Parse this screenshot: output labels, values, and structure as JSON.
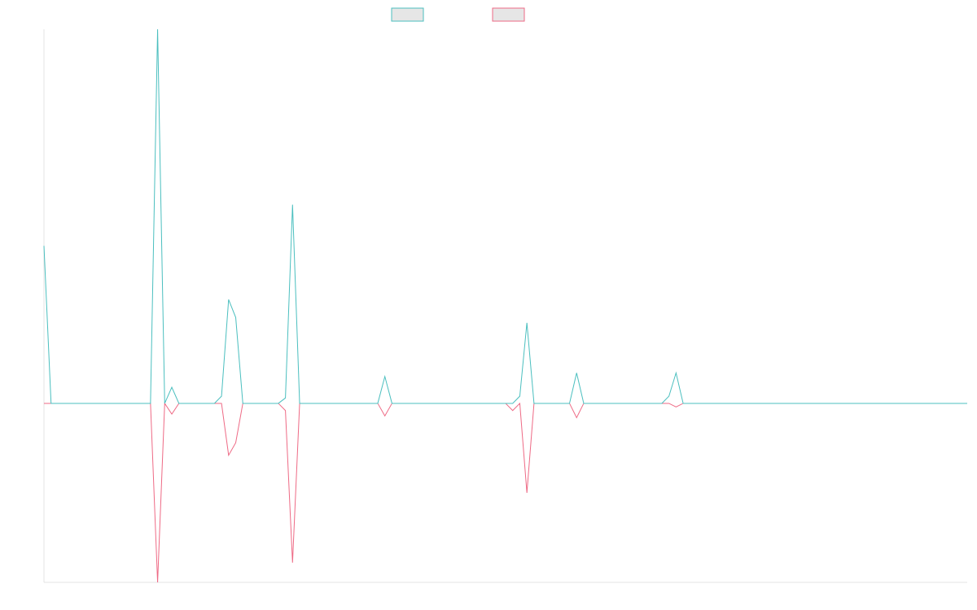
{
  "chart_data": {
    "type": "line",
    "title": "",
    "xlabel": "",
    "ylabel": "",
    "grid": false,
    "legend_position": "top-center",
    "x_count": 131,
    "ylim": [
      -1.0,
      2.09
    ],
    "colors": {
      "series_a": "#4bbfbf",
      "series_b": "#ee6a85",
      "legend_fill": "#e6e6e6",
      "axis": "#e3e3e3"
    },
    "series": [
      {
        "values": [
          0.88,
          0,
          0,
          0,
          0,
          0,
          0,
          0,
          0,
          0,
          0,
          0,
          0,
          0,
          0,
          0,
          2.09,
          0,
          0.09,
          0,
          0,
          0,
          0,
          0,
          0,
          0.04,
          0.58,
          0.48,
          0,
          0,
          0,
          0,
          0,
          0,
          0.03,
          1.11,
          0,
          0,
          0,
          0,
          0,
          0,
          0,
          0,
          0,
          0,
          0,
          0,
          0.15,
          0,
          0,
          0,
          0,
          0,
          0,
          0,
          0,
          0,
          0,
          0,
          0,
          0,
          0,
          0,
          0,
          0,
          0,
          0.04,
          0.45,
          0,
          0,
          0,
          0,
          0,
          0,
          0.17,
          0,
          0,
          0,
          0,
          0,
          0,
          0,
          0,
          0,
          0,
          0,
          0,
          0.04,
          0.17,
          0,
          0,
          0,
          0,
          0,
          0,
          0,
          0,
          0,
          0,
          0,
          0,
          0,
          0,
          0,
          0,
          0,
          0,
          0,
          0,
          0,
          0,
          0,
          0,
          0,
          0,
          0,
          0,
          0,
          0,
          0,
          0,
          0,
          0,
          0,
          0,
          0,
          0,
          0,
          0,
          0
        ]
      },
      {
        "values": [
          0,
          0,
          0,
          0,
          0,
          0,
          0,
          0,
          0,
          0,
          0,
          0,
          0,
          0,
          0,
          0,
          -1.0,
          0,
          -0.06,
          0,
          0,
          0,
          0,
          0,
          0,
          0,
          -0.29,
          -0.22,
          0,
          0,
          0,
          0,
          0,
          0,
          -0.04,
          -0.89,
          0,
          0,
          0,
          0,
          0,
          0,
          0,
          0,
          0,
          0,
          0,
          0,
          -0.07,
          0,
          0,
          0,
          0,
          0,
          0,
          0,
          0,
          0,
          0,
          0,
          0,
          0,
          0,
          0,
          0,
          0,
          -0.04,
          0,
          -0.5,
          0,
          0,
          0,
          0,
          0,
          0,
          -0.08,
          0,
          0,
          0,
          0,
          0,
          0,
          0,
          0,
          0,
          0,
          0,
          0,
          0,
          -0.02,
          0,
          0,
          0,
          0,
          0,
          0,
          0,
          0,
          0,
          0,
          0,
          0,
          0,
          0,
          0,
          0,
          0,
          0,
          0,
          0,
          0,
          0,
          0,
          0,
          0,
          0,
          0,
          0,
          0,
          0,
          0,
          0,
          0,
          0,
          0,
          0,
          0,
          0,
          0,
          0,
          0
        ]
      }
    ]
  }
}
